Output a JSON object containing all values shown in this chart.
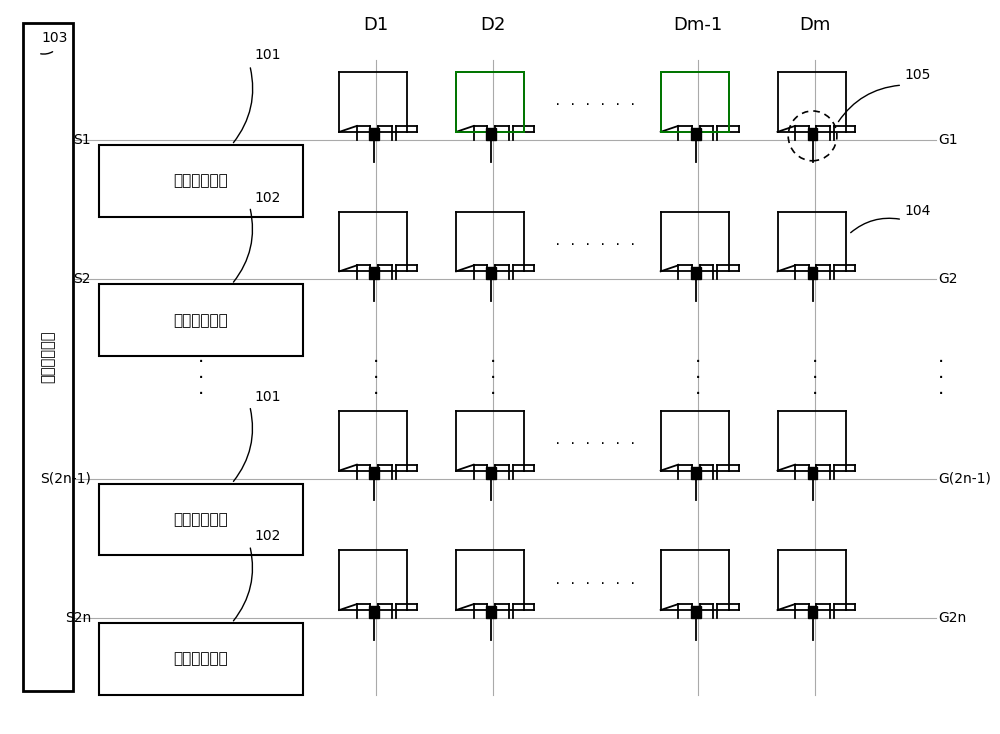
{
  "bg_color": "#ffffff",
  "line_color": "#000000",
  "gray_line": "#aaaaaa",
  "green_line": "#008000",
  "fig_width": 10.0,
  "fig_height": 7.34,
  "col_labels": [
    "D1",
    "D2",
    "Dm-1",
    "Dm"
  ],
  "gate_labels": [
    "G1",
    "G2",
    "G(2n-1)",
    "G2n"
  ],
  "row_s_labels": [
    "S1",
    "S2",
    "S(2n-1)",
    "S2n"
  ],
  "circuit_labels": [
    "第一控制电路",
    "第二控制电路",
    "第一控制电路",
    "第二控制电路"
  ],
  "left_box_label": "栊极驱动电路",
  "ref_103": "103",
  "ref_101_top": "101",
  "ref_102_row2": "102",
  "ref_101_row3": "101",
  "ref_102_row4": "102",
  "ref_104": "104",
  "ref_105": "105"
}
